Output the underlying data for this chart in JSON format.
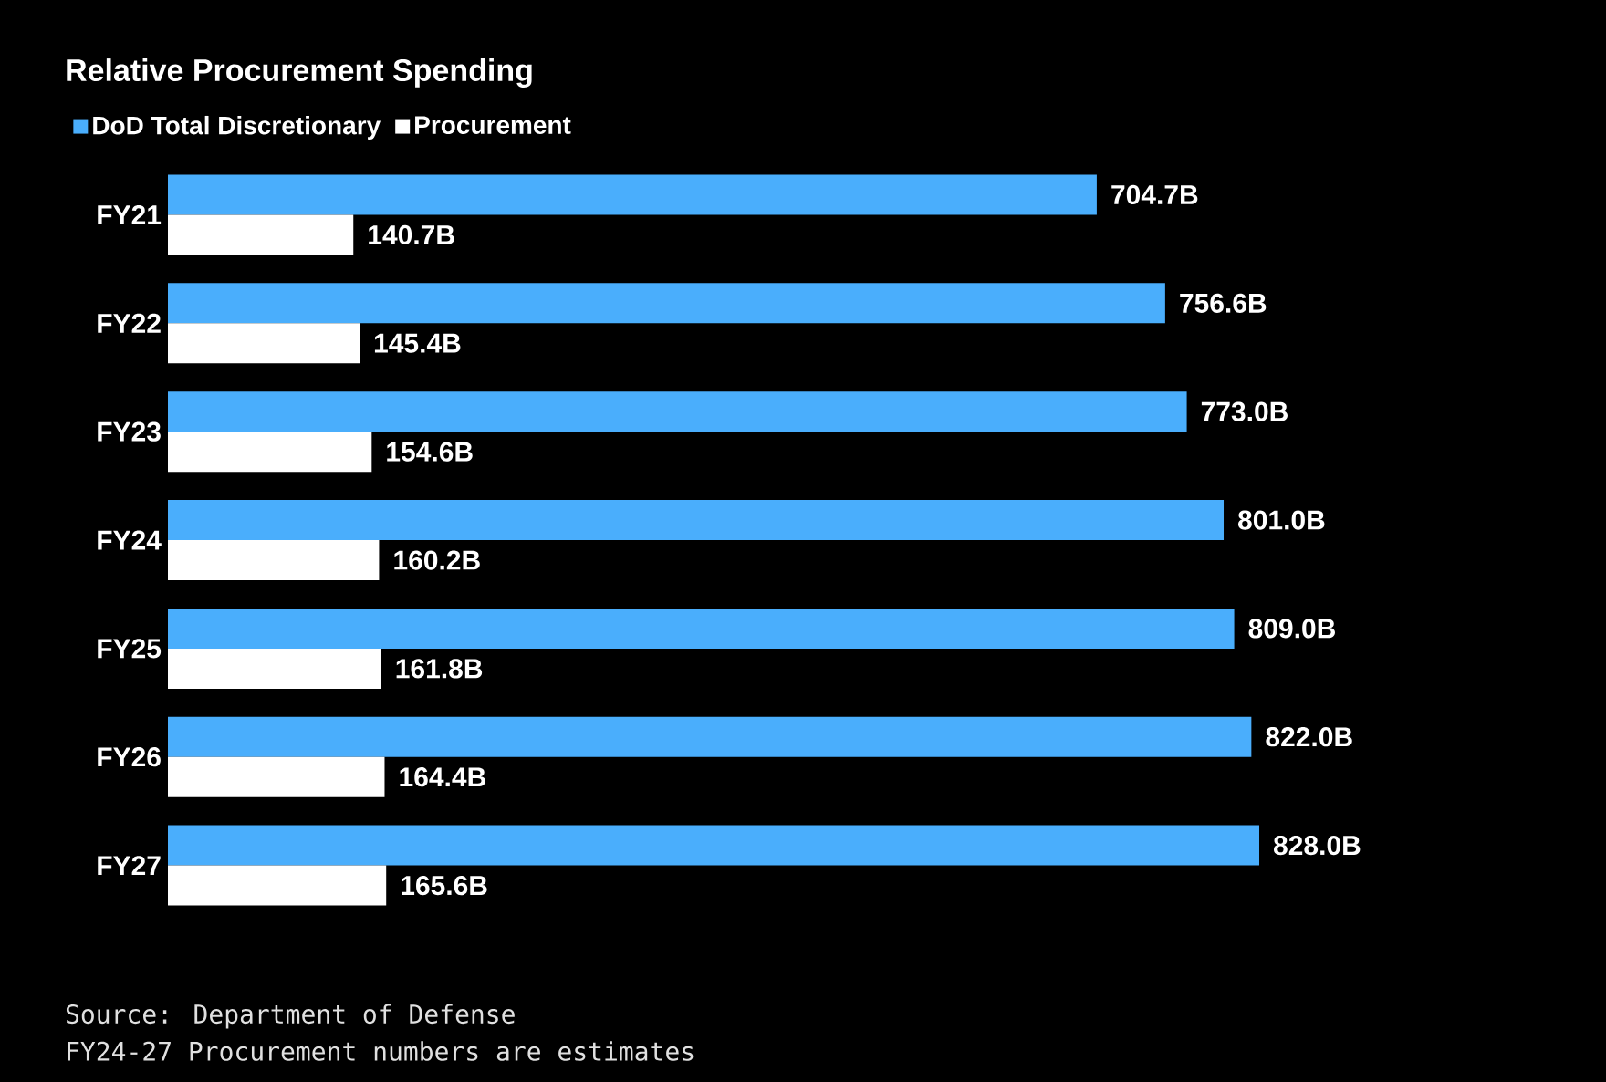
{
  "chart_data": {
    "type": "bar",
    "orientation": "horizontal",
    "title": "Relative Procurement Spending",
    "categories": [
      "FY21",
      "FY22",
      "FY23",
      "FY24",
      "FY25",
      "FY26",
      "FY27"
    ],
    "series": [
      {
        "name": "DoD Total Discretionary",
        "color": "#4aaefc",
        "values": [
          704.7,
          756.6,
          773.0,
          801.0,
          809.0,
          822.0,
          828.0
        ],
        "value_labels": [
          "704.7B",
          "756.6B",
          "773.0B",
          "801.0B",
          "809.0B",
          "822.0B",
          "828.0B"
        ]
      },
      {
        "name": "Procurement",
        "color": "#ffffff",
        "values": [
          140.7,
          145.4,
          154.6,
          160.2,
          161.8,
          164.4,
          165.6
        ],
        "value_labels": [
          "140.7B",
          "145.4B",
          "154.6B",
          "160.2B",
          "161.8B",
          "164.4B",
          "165.6B"
        ]
      }
    ],
    "tick_labels": "y",
    "legend": "top left",
    "annotations": [
      "Source: Department of Defense",
      "FY24-27 Procurement numbers are estimates"
    ]
  }
}
